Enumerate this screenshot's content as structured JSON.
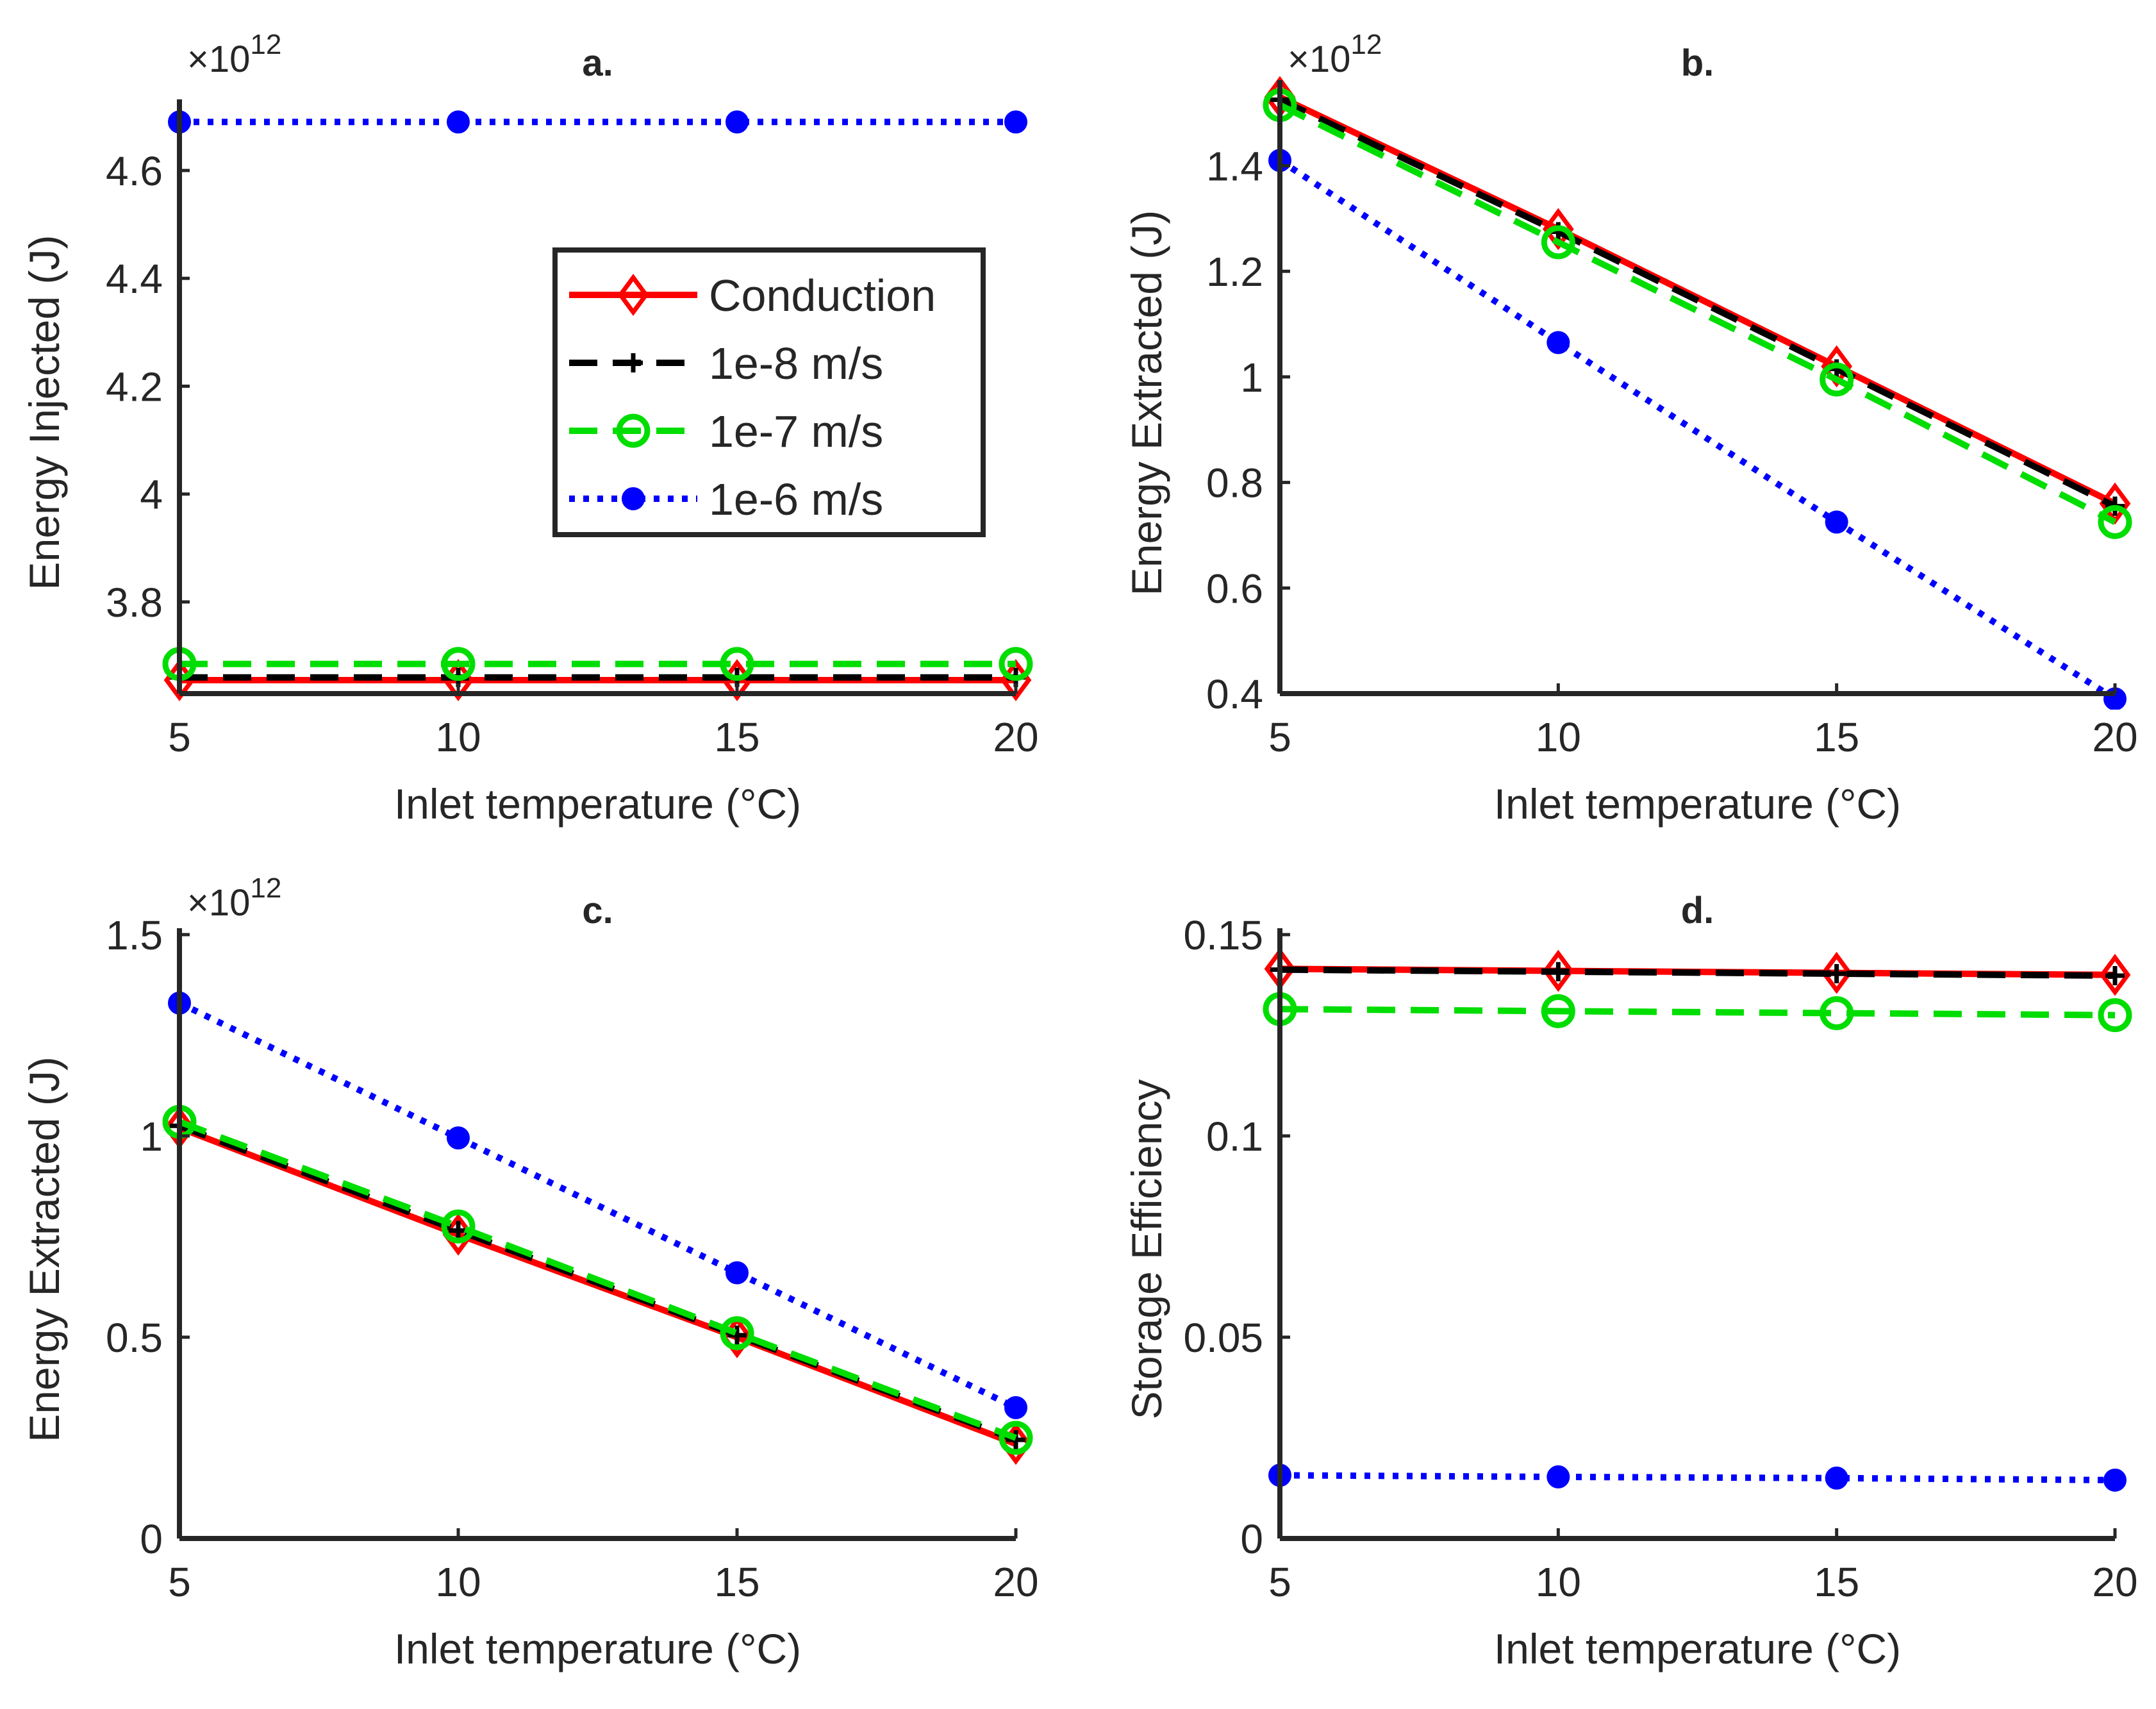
{
  "figure": {
    "legend": {
      "placement": "panel a, right-center",
      "entries": [
        "Conduction",
        "1e-8 m/s",
        "1e-7 m/s",
        "1e-6 m/s"
      ]
    }
  },
  "styles": {
    "Conduction": {
      "color": "#ff0000",
      "line": "solid",
      "marker": "diamond"
    },
    "1e-8 m/s": {
      "color": "#000000",
      "line": "dashed",
      "marker": "plus"
    },
    "1e-7 m/s": {
      "color": "#00dd00",
      "line": "dashed",
      "marker": "circle-open"
    },
    "1e-6 m/s": {
      "color": "#0000ff",
      "line": "dotted",
      "marker": "circle-filled"
    }
  },
  "chart_data": [
    {
      "type": "line",
      "title": "a.",
      "xlabel": "Inlet temperature  (°C)",
      "ylabel": "Energy Injected (J)",
      "exponent_label": "×10",
      "exponent_power": "12",
      "x": [
        5,
        10,
        15,
        20
      ],
      "xlim": [
        5,
        20
      ],
      "ylim": [
        3.63,
        4.72
      ],
      "xticks": [
        5,
        10,
        15,
        20
      ],
      "yticks": [
        3.8,
        4,
        4.2,
        4.4,
        4.6
      ],
      "ytick_labels": [
        "3.8",
        "4",
        "4.2",
        "4.4",
        "4.6"
      ],
      "series": [
        {
          "name": "Conduction",
          "values": [
            3.655,
            3.655,
            3.655,
            3.655
          ]
        },
        {
          "name": "1e-8 m/s",
          "values": [
            3.66,
            3.66,
            3.66,
            3.66
          ]
        },
        {
          "name": "1e-7 m/s",
          "values": [
            3.685,
            3.685,
            3.685,
            3.685
          ]
        },
        {
          "name": "1e-6 m/s",
          "values": [
            4.69,
            4.69,
            4.69,
            4.69
          ]
        }
      ]
    },
    {
      "type": "line",
      "title": "b.",
      "xlabel": "Inlet temperature  (°C)",
      "ylabel": "Energy Extracted (J)",
      "exponent_label": "×10",
      "exponent_power": "12",
      "x": [
        5,
        10,
        15,
        20
      ],
      "xlim": [
        5,
        20
      ],
      "ylim": [
        0.4,
        1.55
      ],
      "xticks": [
        5,
        10,
        15,
        20
      ],
      "yticks": [
        0.4,
        0.6,
        0.8,
        1.0,
        1.2,
        1.4
      ],
      "ytick_labels": [
        "0.4",
        "0.6",
        "0.8",
        "1",
        "1.2",
        "1.4"
      ],
      "series": [
        {
          "name": "Conduction",
          "values": [
            1.53,
            1.28,
            1.02,
            0.76
          ]
        },
        {
          "name": "1e-8 m/s",
          "values": [
            1.525,
            1.275,
            1.015,
            0.755
          ]
        },
        {
          "name": "1e-7 m/s",
          "values": [
            1.515,
            1.255,
            0.995,
            0.725
          ]
        },
        {
          "name": "1e-6 m/s",
          "values": [
            1.41,
            1.065,
            0.725,
            0.39
          ]
        }
      ]
    },
    {
      "type": "line",
      "title": "c.",
      "xlabel": "Inlet temperature  (°C)",
      "ylabel": "Energy Extracted (J)",
      "exponent_label": "×10",
      "exponent_power": "12",
      "x": [
        5,
        10,
        15,
        20
      ],
      "xlim": [
        5,
        20
      ],
      "ylim": [
        0,
        1.5
      ],
      "xticks": [
        5,
        10,
        15,
        20
      ],
      "yticks": [
        0,
        0.5,
        1,
        1.5
      ],
      "ytick_labels": [
        "0",
        "0.5",
        "1",
        "1.5"
      ],
      "series": [
        {
          "name": "Conduction",
          "values": [
            1.02,
            0.755,
            0.5,
            0.235
          ]
        },
        {
          "name": "1e-8 m/s",
          "values": [
            1.025,
            0.765,
            0.505,
            0.245
          ]
        },
        {
          "name": "1e-7 m/s",
          "values": [
            1.035,
            0.775,
            0.51,
            0.25
          ]
        },
        {
          "name": "1e-6 m/s",
          "values": [
            1.33,
            0.995,
            0.66,
            0.325
          ]
        }
      ]
    },
    {
      "type": "line",
      "title": "d.",
      "xlabel": "Inlet temperature  (°C)",
      "ylabel": "Storage Efficiency",
      "exponent_label": "",
      "exponent_power": "",
      "x": [
        5,
        10,
        15,
        20
      ],
      "xlim": [
        5,
        20
      ],
      "ylim": [
        0,
        0.15
      ],
      "xticks": [
        5,
        10,
        15,
        20
      ],
      "yticks": [
        0,
        0.05,
        0.1,
        0.15
      ],
      "ytick_labels": [
        "0",
        "0.05",
        "0.1",
        "0.15"
      ],
      "series": [
        {
          "name": "Conduction",
          "values": [
            0.1415,
            0.141,
            0.1405,
            0.14
          ]
        },
        {
          "name": "1e-8 m/s",
          "values": [
            0.1413,
            0.1408,
            0.1403,
            0.1398
          ]
        },
        {
          "name": "1e-7 m/s",
          "values": [
            0.1315,
            0.131,
            0.1305,
            0.13
          ]
        },
        {
          "name": "1e-6 m/s",
          "values": [
            0.0157,
            0.0153,
            0.015,
            0.0145
          ]
        }
      ]
    }
  ]
}
